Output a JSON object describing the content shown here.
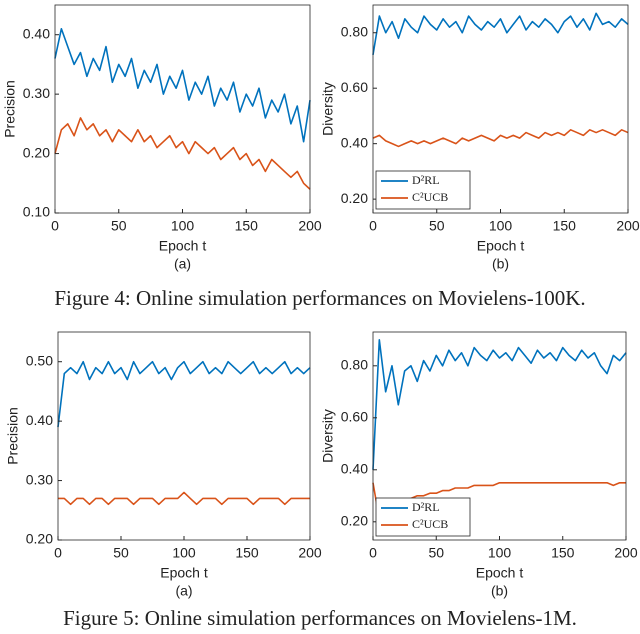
{
  "chart_data": [
    {
      "type": "line",
      "ylabel": "Precision",
      "xlabel": "Epoch t",
      "caption": "(a)",
      "x": [
        0,
        5,
        10,
        15,
        20,
        25,
        30,
        35,
        40,
        45,
        50,
        55,
        60,
        65,
        70,
        75,
        80,
        85,
        90,
        95,
        100,
        105,
        110,
        115,
        120,
        125,
        130,
        135,
        140,
        145,
        150,
        155,
        160,
        165,
        170,
        175,
        180,
        185,
        190,
        195,
        200
      ],
      "xlim": [
        0,
        200
      ],
      "xticks": [
        0,
        50,
        100,
        150,
        200
      ],
      "ylim": [
        0.1,
        0.45
      ],
      "yticks": [
        {
          "value": 0.1,
          "label": "0.10"
        },
        {
          "value": 0.2,
          "label": "0.20"
        },
        {
          "value": 0.3,
          "label": "0.30"
        },
        {
          "value": 0.4,
          "label": "0.40"
        }
      ],
      "series": [
        {
          "color": "#0072bd",
          "values": [
            0.36,
            0.41,
            0.38,
            0.35,
            0.37,
            0.33,
            0.36,
            0.34,
            0.38,
            0.32,
            0.35,
            0.33,
            0.36,
            0.31,
            0.34,
            0.32,
            0.35,
            0.3,
            0.33,
            0.31,
            0.34,
            0.29,
            0.32,
            0.3,
            0.33,
            0.28,
            0.31,
            0.29,
            0.32,
            0.27,
            0.3,
            0.28,
            0.31,
            0.26,
            0.29,
            0.27,
            0.3,
            0.25,
            0.28,
            0.22,
            0.29
          ]
        },
        {
          "color": "#d95319",
          "values": [
            0.2,
            0.24,
            0.25,
            0.23,
            0.26,
            0.24,
            0.25,
            0.23,
            0.24,
            0.22,
            0.24,
            0.23,
            0.22,
            0.24,
            0.22,
            0.23,
            0.21,
            0.22,
            0.23,
            0.21,
            0.22,
            0.2,
            0.22,
            0.21,
            0.2,
            0.21,
            0.19,
            0.2,
            0.21,
            0.19,
            0.2,
            0.18,
            0.19,
            0.17,
            0.19,
            0.18,
            0.17,
            0.16,
            0.17,
            0.15,
            0.14
          ]
        }
      ]
    },
    {
      "type": "line",
      "ylabel": "Diversity",
      "xlabel": "Epoch t",
      "caption": "(b)",
      "legend": "lower left",
      "x": [
        0,
        5,
        10,
        15,
        20,
        25,
        30,
        35,
        40,
        45,
        50,
        55,
        60,
        65,
        70,
        75,
        80,
        85,
        90,
        95,
        100,
        105,
        110,
        115,
        120,
        125,
        130,
        135,
        140,
        145,
        150,
        155,
        160,
        165,
        170,
        175,
        180,
        185,
        190,
        195,
        200
      ],
      "xlim": [
        0,
        200
      ],
      "xticks": [
        0,
        50,
        100,
        150,
        200
      ],
      "ylim": [
        0.15,
        0.9
      ],
      "yticks": [
        {
          "value": 0.2,
          "label": "0.20"
        },
        {
          "value": 0.4,
          "label": "0.40"
        },
        {
          "value": 0.6,
          "label": "0.60"
        },
        {
          "value": 0.8,
          "label": "0.80"
        }
      ],
      "series": [
        {
          "name": "D²RL",
          "color": "#0072bd",
          "values": [
            0.72,
            0.86,
            0.8,
            0.84,
            0.78,
            0.85,
            0.82,
            0.8,
            0.86,
            0.83,
            0.81,
            0.85,
            0.82,
            0.84,
            0.8,
            0.86,
            0.83,
            0.81,
            0.84,
            0.82,
            0.85,
            0.8,
            0.83,
            0.86,
            0.81,
            0.84,
            0.82,
            0.85,
            0.83,
            0.8,
            0.84,
            0.86,
            0.82,
            0.85,
            0.81,
            0.87,
            0.83,
            0.84,
            0.82,
            0.85,
            0.83
          ]
        },
        {
          "name": "C²UCB",
          "color": "#d95319",
          "values": [
            0.42,
            0.43,
            0.41,
            0.4,
            0.39,
            0.4,
            0.41,
            0.4,
            0.41,
            0.4,
            0.41,
            0.42,
            0.41,
            0.4,
            0.42,
            0.41,
            0.42,
            0.43,
            0.42,
            0.41,
            0.43,
            0.42,
            0.43,
            0.42,
            0.44,
            0.43,
            0.42,
            0.44,
            0.43,
            0.44,
            0.43,
            0.45,
            0.44,
            0.43,
            0.45,
            0.44,
            0.45,
            0.44,
            0.43,
            0.45,
            0.44
          ]
        }
      ]
    },
    {
      "type": "line",
      "ylabel": "Precision",
      "xlabel": "Epoch t",
      "caption": "(a)",
      "x": [
        0,
        5,
        10,
        15,
        20,
        25,
        30,
        35,
        40,
        45,
        50,
        55,
        60,
        65,
        70,
        75,
        80,
        85,
        90,
        95,
        100,
        105,
        110,
        115,
        120,
        125,
        130,
        135,
        140,
        145,
        150,
        155,
        160,
        165,
        170,
        175,
        180,
        185,
        190,
        195,
        200
      ],
      "xlim": [
        0,
        200
      ],
      "xticks": [
        0,
        50,
        100,
        150,
        200
      ],
      "ylim": [
        0.2,
        0.55
      ],
      "yticks": [
        {
          "value": 0.2,
          "label": "0.20"
        },
        {
          "value": 0.3,
          "label": "0.30"
        },
        {
          "value": 0.4,
          "label": "0.40"
        },
        {
          "value": 0.5,
          "label": "0.50"
        }
      ],
      "series": [
        {
          "color": "#0072bd",
          "values": [
            0.39,
            0.48,
            0.49,
            0.48,
            0.5,
            0.47,
            0.49,
            0.48,
            0.5,
            0.48,
            0.49,
            0.47,
            0.5,
            0.48,
            0.49,
            0.5,
            0.48,
            0.49,
            0.47,
            0.49,
            0.5,
            0.48,
            0.49,
            0.5,
            0.48,
            0.49,
            0.48,
            0.5,
            0.49,
            0.48,
            0.49,
            0.5,
            0.48,
            0.49,
            0.48,
            0.49,
            0.5,
            0.48,
            0.49,
            0.48,
            0.49
          ]
        },
        {
          "color": "#d95319",
          "values": [
            0.27,
            0.27,
            0.26,
            0.27,
            0.27,
            0.26,
            0.27,
            0.27,
            0.26,
            0.27,
            0.27,
            0.27,
            0.26,
            0.27,
            0.27,
            0.27,
            0.26,
            0.27,
            0.27,
            0.27,
            0.28,
            0.27,
            0.26,
            0.27,
            0.27,
            0.27,
            0.26,
            0.27,
            0.27,
            0.27,
            0.27,
            0.26,
            0.27,
            0.27,
            0.27,
            0.27,
            0.26,
            0.27,
            0.27,
            0.27,
            0.27
          ]
        }
      ]
    },
    {
      "type": "line",
      "ylabel": "Diversity",
      "xlabel": "Epoch t",
      "caption": "(b)",
      "legend": "lower left",
      "x": [
        0,
        5,
        10,
        15,
        20,
        25,
        30,
        35,
        40,
        45,
        50,
        55,
        60,
        65,
        70,
        75,
        80,
        85,
        90,
        95,
        100,
        105,
        110,
        115,
        120,
        125,
        130,
        135,
        140,
        145,
        150,
        155,
        160,
        165,
        170,
        175,
        180,
        185,
        190,
        195,
        200
      ],
      "xlim": [
        0,
        200
      ],
      "xticks": [
        0,
        50,
        100,
        150,
        200
      ],
      "ylim": [
        0.13,
        0.93
      ],
      "yticks": [
        {
          "value": 0.2,
          "label": "0.20"
        },
        {
          "value": 0.4,
          "label": "0.40"
        },
        {
          "value": 0.6,
          "label": "0.60"
        },
        {
          "value": 0.8,
          "label": "0.80"
        }
      ],
      "series": [
        {
          "name": "D²RL",
          "color": "#0072bd",
          "values": [
            0.4,
            0.9,
            0.7,
            0.8,
            0.65,
            0.78,
            0.8,
            0.74,
            0.82,
            0.78,
            0.84,
            0.8,
            0.86,
            0.82,
            0.85,
            0.8,
            0.87,
            0.84,
            0.82,
            0.86,
            0.83,
            0.85,
            0.82,
            0.87,
            0.84,
            0.81,
            0.86,
            0.83,
            0.85,
            0.82,
            0.87,
            0.84,
            0.82,
            0.86,
            0.83,
            0.85,
            0.8,
            0.77,
            0.84,
            0.82,
            0.85
          ]
        },
        {
          "name": "C²UCB",
          "color": "#d95319",
          "values": [
            0.35,
            0.21,
            0.24,
            0.26,
            0.27,
            0.28,
            0.29,
            0.3,
            0.3,
            0.31,
            0.31,
            0.32,
            0.32,
            0.33,
            0.33,
            0.33,
            0.34,
            0.34,
            0.34,
            0.34,
            0.35,
            0.35,
            0.35,
            0.35,
            0.35,
            0.35,
            0.35,
            0.35,
            0.35,
            0.35,
            0.35,
            0.35,
            0.35,
            0.35,
            0.35,
            0.35,
            0.35,
            0.35,
            0.34,
            0.35,
            0.35
          ]
        }
      ]
    }
  ],
  "figure_captions": [
    "Figure 4: Online simulation performances on Movielens-100K.",
    "Figure 5: Online simulation performances on Movielens-1M."
  ]
}
